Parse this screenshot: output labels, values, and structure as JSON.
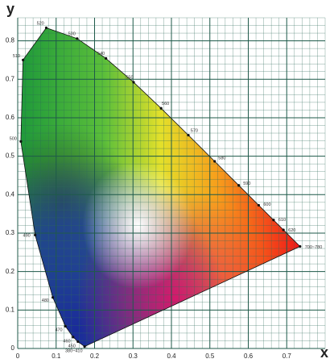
{
  "chart_data": {
    "type": "line",
    "x_label": "x",
    "y_label": "y",
    "x": [
      0.1741,
      0.1566,
      0.144,
      0.1241,
      0.0913,
      0.0454,
      0.0082,
      0.0139,
      0.0743,
      0.1547,
      0.2296,
      0.3016,
      0.3731,
      0.4441,
      0.5125,
      0.5752,
      0.627,
      0.6658,
      0.6915,
      0.7347
    ],
    "y": [
      0.005,
      0.0177,
      0.0297,
      0.0578,
      0.1327,
      0.295,
      0.5384,
      0.7502,
      0.8338,
      0.8059,
      0.7543,
      0.6923,
      0.6245,
      0.5547,
      0.4866,
      0.4242,
      0.3725,
      0.334,
      0.3083,
      0.2653
    ],
    "point_labels": [
      "380~410",
      "450",
      "460",
      "470",
      "480",
      "490",
      "500",
      "510",
      "520",
      "530",
      "540",
      "550",
      "560",
      "570",
      "580",
      "590",
      "600",
      "610",
      "620",
      "700~780"
    ],
    "color": "#111111",
    "xlim": [
      0,
      0.8
    ],
    "ylim": [
      0,
      0.86
    ],
    "xticks": [
      0,
      0.1,
      0.2,
      0.3,
      0.4,
      0.5,
      0.6,
      0.7
    ],
    "yticks": [
      0,
      0.1,
      0.2,
      0.3,
      0.4,
      0.5,
      0.6,
      0.7,
      0.8
    ],
    "grid": true
  }
}
